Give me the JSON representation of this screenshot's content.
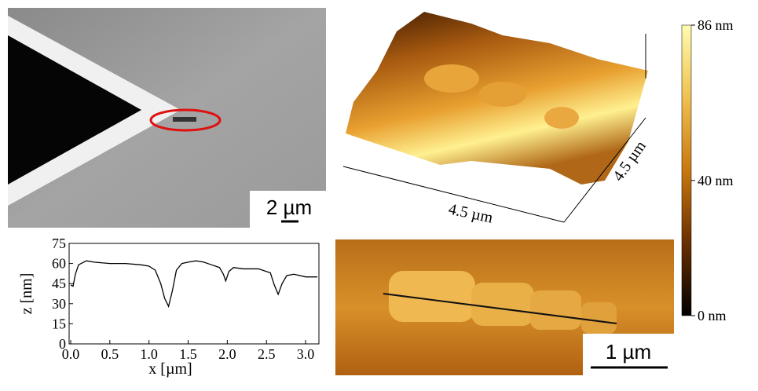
{
  "panels": {
    "sem_scale": "2 µm",
    "afm_scale": "1 µm",
    "afm3d_x": "4.5 µm",
    "afm3d_y": "4.5 µm"
  },
  "chart_data": [
    {
      "type": "line",
      "xlabel": "x [µm]",
      "ylabel": "z [nm]",
      "color": "#000000",
      "x": [
        0,
        0.03,
        0.06,
        0.1,
        0.2,
        0.3,
        0.5,
        0.7,
        0.9,
        1.0,
        1.08,
        1.15,
        1.2,
        1.25,
        1.3,
        1.35,
        1.42,
        1.5,
        1.6,
        1.7,
        1.8,
        1.9,
        1.95,
        1.98,
        2.02,
        2.08,
        2.2,
        2.4,
        2.55,
        2.6,
        2.65,
        2.7,
        2.76,
        2.85,
        3.0,
        3.15
      ],
      "values": [
        44,
        43,
        52,
        59,
        62,
        61,
        60,
        60,
        59,
        58,
        55,
        45,
        34,
        28,
        40,
        55,
        60,
        61,
        62,
        61,
        59,
        57,
        52,
        47,
        54,
        57,
        56,
        56,
        53,
        44,
        37,
        45,
        51,
        52,
        50,
        50
      ],
      "xlim": [
        0,
        3.15
      ],
      "ylim": [
        0,
        75
      ],
      "xticks": [
        {
          "value": 0,
          "label": "0.0"
        },
        {
          "value": 0.5,
          "label": "0.5"
        },
        {
          "value": 1,
          "label": "1.0"
        },
        {
          "value": 1.5,
          "label": "1.5"
        },
        {
          "value": 2,
          "label": "2.0"
        },
        {
          "value": 2.5,
          "label": "2.5"
        },
        {
          "value": 3,
          "label": "3.0"
        }
      ],
      "yticks": [
        0,
        15,
        30,
        45,
        60,
        75
      ]
    },
    {
      "type": "colorbar",
      "ylim": [
        0,
        86
      ],
      "yticks": [
        {
          "value": 0,
          "label": "0 nm"
        },
        {
          "value": 40,
          "label": "40 nm"
        },
        {
          "value": 86,
          "label": "86 nm"
        }
      ],
      "colors": [
        "#000000",
        "#6a2e00",
        "#c8780f",
        "#f0c050",
        "#fffcb0"
      ]
    }
  ]
}
